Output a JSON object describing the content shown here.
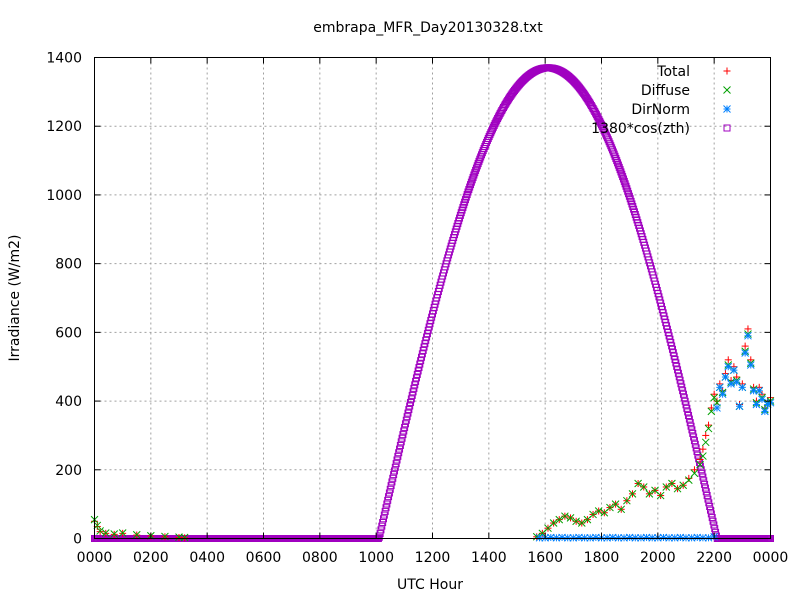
{
  "chart_data": {
    "type": "scatter",
    "title": "embrapa_MFR_Day20130328.txt",
    "xlabel": "UTC Hour",
    "ylabel": "Irradiance (W/m2)",
    "xlim": [
      0,
      24
    ],
    "ylim": [
      0,
      1400
    ],
    "x_ticks": [
      {
        "value": 0,
        "label": "0000"
      },
      {
        "value": 2,
        "label": "0200"
      },
      {
        "value": 4,
        "label": "0400"
      },
      {
        "value": 6,
        "label": "0600"
      },
      {
        "value": 8,
        "label": "0800"
      },
      {
        "value": 10,
        "label": "1000"
      },
      {
        "value": 12,
        "label": "1200"
      },
      {
        "value": 14,
        "label": "1400"
      },
      {
        "value": 16,
        "label": "1600"
      },
      {
        "value": 18,
        "label": "1800"
      },
      {
        "value": 20,
        "label": "2000"
      },
      {
        "value": 22,
        "label": "2200"
      },
      {
        "value": 24,
        "label": "0000"
      }
    ],
    "y_ticks": [
      {
        "value": 0,
        "label": "0"
      },
      {
        "value": 200,
        "label": "200"
      },
      {
        "value": 400,
        "label": "400"
      },
      {
        "value": 600,
        "label": "600"
      },
      {
        "value": 800,
        "label": "800"
      },
      {
        "value": 1000,
        "label": "1000"
      },
      {
        "value": 1200,
        "label": "1200"
      },
      {
        "value": 1400,
        "label": "1400"
      }
    ],
    "grid": true,
    "legend_position": "top-right",
    "series": [
      {
        "name": "Total",
        "marker": "plus",
        "color": "#ff0000",
        "x": [
          0.0,
          0.1,
          0.2,
          0.4,
          0.7,
          1.0,
          1.5,
          2.0,
          2.5,
          3.0,
          3.2,
          15.7,
          15.9,
          16.1,
          16.3,
          16.5,
          16.7,
          16.9,
          17.1,
          17.3,
          17.5,
          17.7,
          17.9,
          18.1,
          18.3,
          18.5,
          18.7,
          18.9,
          19.1,
          19.3,
          19.5,
          19.7,
          19.9,
          20.1,
          20.3,
          20.5,
          20.7,
          20.9,
          21.1,
          21.3,
          21.5,
          21.6,
          21.7,
          21.8,
          21.9,
          22.0,
          22.1,
          22.2,
          22.3,
          22.4,
          22.5,
          22.6,
          22.7,
          22.8,
          22.9,
          23.0,
          23.1,
          23.2,
          23.3,
          23.4,
          23.5,
          23.6,
          23.7,
          23.8,
          23.9,
          24.0
        ],
        "y": [
          50,
          35,
          20,
          15,
          12,
          15,
          10,
          7,
          5,
          3,
          2,
          5,
          15,
          30,
          45,
          55,
          65,
          60,
          50,
          45,
          55,
          70,
          80,
          75,
          90,
          100,
          85,
          110,
          130,
          160,
          150,
          130,
          140,
          125,
          150,
          160,
          145,
          155,
          175,
          200,
          230,
          260,
          300,
          330,
          380,
          420,
          400,
          450,
          430,
          480,
          520,
          460,
          500,
          470,
          390,
          450,
          560,
          610,
          520,
          440,
          400,
          440,
          420,
          380,
          400,
          410
        ]
      },
      {
        "name": "Diffuse",
        "marker": "cross",
        "color": "#00a000",
        "x": [
          0.0,
          0.1,
          0.2,
          0.4,
          0.7,
          1.0,
          1.5,
          2.0,
          2.5,
          3.0,
          3.2,
          15.7,
          15.9,
          16.1,
          16.3,
          16.5,
          16.7,
          16.9,
          17.1,
          17.3,
          17.5,
          17.7,
          17.9,
          18.1,
          18.3,
          18.5,
          18.7,
          18.9,
          19.1,
          19.3,
          19.5,
          19.7,
          19.9,
          20.1,
          20.3,
          20.5,
          20.7,
          20.9,
          21.1,
          21.3,
          21.5,
          21.6,
          21.7,
          21.8,
          21.9,
          22.0,
          22.1,
          22.2,
          22.3,
          22.4,
          22.5,
          22.6,
          22.7,
          22.8,
          22.9,
          23.0,
          23.1,
          23.2,
          23.3,
          23.4,
          23.5,
          23.6,
          23.7,
          23.8,
          23.9,
          24.0
        ],
        "y": [
          55,
          38,
          22,
          16,
          13,
          16,
          11,
          8,
          6,
          4,
          3,
          5,
          15,
          30,
          45,
          55,
          65,
          60,
          50,
          45,
          55,
          70,
          80,
          75,
          90,
          100,
          85,
          110,
          130,
          160,
          150,
          130,
          140,
          125,
          150,
          160,
          145,
          155,
          170,
          190,
          215,
          240,
          280,
          320,
          370,
          410,
          395,
          440,
          425,
          470,
          505,
          455,
          490,
          460,
          385,
          440,
          545,
          595,
          510,
          435,
          395,
          430,
          410,
          375,
          395,
          400
        ]
      },
      {
        "name": "DirNorm",
        "marker": "star",
        "color": "#0080ff",
        "x": [
          15.8,
          16.0,
          16.2,
          16.4,
          16.6,
          16.8,
          17.0,
          17.2,
          17.4,
          17.6,
          17.8,
          18.0,
          18.2,
          18.4,
          18.6,
          18.8,
          19.0,
          19.2,
          19.4,
          19.6,
          19.8,
          20.0,
          20.2,
          20.4,
          20.6,
          20.8,
          21.0,
          21.2,
          21.4,
          21.6,
          21.8,
          22.0,
          22.1,
          22.2,
          22.3,
          22.4,
          22.5,
          22.6,
          22.7,
          22.8,
          22.9,
          23.0,
          23.1,
          23.2,
          23.3,
          23.4,
          23.5,
          23.6,
          23.7,
          23.8,
          23.9,
          24.0
        ],
        "y": [
          2,
          2,
          3,
          2,
          3,
          2,
          2,
          3,
          2,
          2,
          3,
          2,
          2,
          3,
          2,
          2,
          3,
          2,
          2,
          3,
          2,
          2,
          3,
          2,
          2,
          3,
          2,
          2,
          3,
          2,
          2,
          5,
          380,
          440,
          420,
          470,
          500,
          450,
          490,
          455,
          385,
          440,
          540,
          590,
          505,
          430,
          390,
          430,
          405,
          370,
          390,
          395
        ]
      },
      {
        "name": "1380*cos(zth)",
        "marker": "square",
        "color": "#a000c0",
        "curve": {
          "amplitude": 1370,
          "start": 10.1,
          "end": 22.1,
          "step": 0.03
        }
      }
    ]
  }
}
